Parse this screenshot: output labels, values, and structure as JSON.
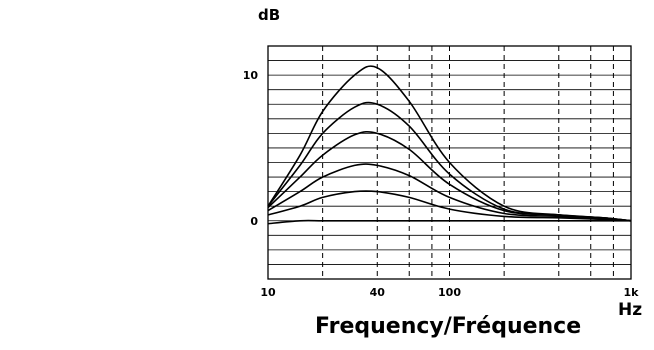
{
  "chart_data": {
    "type": "line",
    "xlabel": "Frequency/Fréquence",
    "ylabel": "dB",
    "x_unit": "Hz",
    "x_scale": "log",
    "xlim": [
      10,
      1000
    ],
    "ylim": [
      -4,
      12
    ],
    "x_tick_labels": [
      {
        "value": 10,
        "label": "10"
      },
      {
        "value": 40,
        "label": "40"
      },
      {
        "value": 100,
        "label": "100"
      },
      {
        "value": 1000,
        "label": "1k"
      }
    ],
    "y_tick_labels": [
      {
        "value": 10,
        "label": "10"
      },
      {
        "value": 0,
        "label": "0"
      }
    ],
    "x_gridlines": [
      20,
      40,
      60,
      80,
      100,
      200,
      400,
      600,
      800
    ],
    "y_gridlines": [
      -4,
      -3,
      -2,
      -1,
      0,
      1,
      2,
      3,
      4,
      5,
      6,
      7,
      8,
      9,
      10,
      11,
      12
    ],
    "grid": true,
    "x": [
      10,
      15,
      20,
      30,
      40,
      60,
      100,
      200,
      400,
      700,
      1000
    ],
    "series": [
      {
        "values": [
          1.0,
          4.5,
          7.5,
          10.0,
          10.5,
          8.2,
          4.0,
          1.0,
          0.4,
          0.2,
          0.0
        ]
      },
      {
        "values": [
          1.0,
          3.8,
          6.0,
          7.8,
          8.0,
          6.5,
          3.2,
          0.8,
          0.4,
          0.2,
          0.0
        ]
      },
      {
        "values": [
          0.9,
          3.0,
          4.5,
          5.9,
          6.0,
          4.9,
          2.5,
          0.7,
          0.4,
          0.2,
          0.0
        ]
      },
      {
        "values": [
          0.7,
          2.0,
          3.0,
          3.8,
          3.8,
          3.1,
          1.6,
          0.5,
          0.3,
          0.1,
          0.0
        ]
      },
      {
        "values": [
          0.4,
          1.0,
          1.6,
          2.0,
          2.0,
          1.6,
          0.8,
          0.3,
          0.2,
          0.1,
          0.0
        ]
      },
      {
        "values": [
          -0.2,
          0.0,
          0.0,
          0.0,
          0.0,
          0.0,
          0.0,
          0.0,
          0.0,
          0.0,
          0.0
        ]
      }
    ]
  }
}
